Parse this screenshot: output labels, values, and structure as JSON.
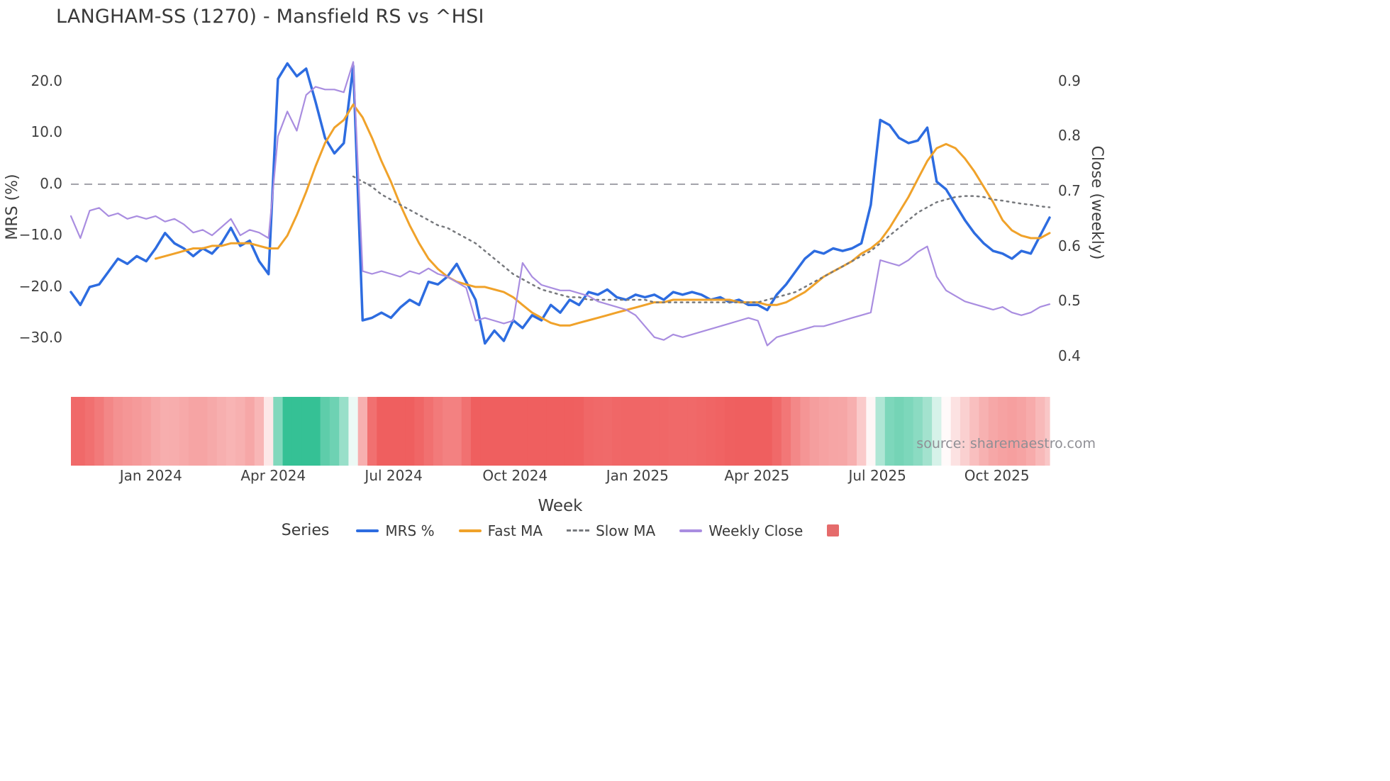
{
  "title": "LANGHAM-SS (1270) - Mansfield RS vs ^HSI",
  "source": "source: sharemaestro.com",
  "axes": {
    "left_label": "MRS (%)",
    "right_label": "Close (weekly)",
    "x_label": "Week",
    "left_ticks": [
      {
        "label": "20.0",
        "v": 20
      },
      {
        "label": "10.0",
        "v": 10
      },
      {
        "label": "0.0",
        "v": 0
      },
      {
        "label": "−10.0",
        "v": -10
      },
      {
        "label": "−20.0",
        "v": -20
      },
      {
        "label": "−30.0",
        "v": -30
      }
    ],
    "right_ticks": [
      {
        "label": "0.9",
        "v": 0.9
      },
      {
        "label": "0.8",
        "v": 0.8
      },
      {
        "label": "0.7",
        "v": 0.7
      },
      {
        "label": "0.6",
        "v": 0.6
      },
      {
        "label": "0.5",
        "v": 0.5
      },
      {
        "label": "0.4",
        "v": 0.4
      }
    ],
    "x_ticks": [
      {
        "label": "Jan 2024",
        "i": 8.5
      },
      {
        "label": "Apr 2024",
        "i": 21.5
      },
      {
        "label": "Jul 2024",
        "i": 34.3
      },
      {
        "label": "Oct 2024",
        "i": 47.2
      },
      {
        "label": "Jan 2025",
        "i": 60.2
      },
      {
        "label": "Apr 2025",
        "i": 72.9
      },
      {
        "label": "Jul 2025",
        "i": 85.7
      },
      {
        "label": "Oct 2025",
        "i": 98.4
      }
    ]
  },
  "legend": {
    "title": "Series",
    "entries": [
      {
        "label": "MRS %",
        "swatch": "line",
        "color": "#2d6ce0"
      },
      {
        "label": "Fast MA",
        "swatch": "line",
        "color": "#f0a22a"
      },
      {
        "label": "Slow MA",
        "swatch": "dashed-line",
        "color": "#77797d"
      },
      {
        "label": "Weekly Close",
        "swatch": "line",
        "color": "#a98de0"
      },
      {
        "label": "",
        "swatch": "square",
        "color": "#e56b6b"
      }
    ]
  },
  "chart_data": {
    "type": "line",
    "x_unit": "weekly, Nov 2023 - Nov 2025",
    "left_range": [
      -34.5,
      25.5
    ],
    "right_range": [
      0.391,
      0.951
    ],
    "zero_line": 0,
    "heatmap": {
      "derived_from": "MRS %",
      "positive_color_rgb": [
        26,
        184,
        134
      ],
      "negative_color_rgb": [
        237,
        73,
        73
      ]
    },
    "series": [
      {
        "name": "MRS %",
        "axis": "left",
        "color": "#2d6ce0",
        "style": "solid",
        "width": 3.5,
        "values": [
          -21,
          -23.5,
          -20,
          -19.5,
          -17,
          -14.5,
          -15.5,
          -14,
          -15,
          -12.5,
          -9.5,
          -11.5,
          -12.5,
          -14,
          -12.5,
          -13.5,
          -11.5,
          -8.5,
          -12,
          -11,
          -15,
          -17.5,
          20.5,
          23.5,
          21,
          22.5,
          16,
          9,
          6,
          8,
          23,
          -26.5,
          -26,
          -25,
          -26,
          -24,
          -22.5,
          -23.5,
          -19,
          -19.5,
          -18,
          -15.5,
          -19,
          -22.5,
          -31,
          -28.5,
          -30.5,
          -26.5,
          -28,
          -25.5,
          -26.5,
          -23.5,
          -25,
          -22.5,
          -23.5,
          -21,
          -21.5,
          -20.5,
          -22,
          -22.5,
          -21.5,
          -22,
          -21.5,
          -22.5,
          -21,
          -21.5,
          -21,
          -21.5,
          -22.5,
          -22,
          -23,
          -22.5,
          -23.5,
          -23.5,
          -24.5,
          -21.5,
          -19.5,
          -17,
          -14.5,
          -13,
          -13.5,
          -12.5,
          -13,
          -12.5,
          -11.5,
          -4,
          12.5,
          11.5,
          9,
          8,
          8.5,
          11,
          0.5,
          -1,
          -4,
          -7,
          -9.5,
          -11.5,
          -13,
          -13.5,
          -14.5,
          -13,
          -13.5,
          -10,
          -6.5
        ]
      },
      {
        "name": "Fast MA",
        "axis": "left",
        "color": "#f0a22a",
        "style": "solid",
        "width": 3,
        "values": [
          null,
          null,
          null,
          null,
          null,
          null,
          null,
          null,
          null,
          -14.5,
          -14,
          -13.5,
          -13,
          -12.5,
          -12.5,
          -12,
          -12,
          -11.5,
          -11.5,
          -11.5,
          -12,
          -12.5,
          -12.5,
          -10,
          -6,
          -1.5,
          3.5,
          8,
          11,
          12.5,
          15.5,
          13,
          9,
          4.5,
          0.5,
          -4,
          -8,
          -11.5,
          -14.5,
          -16.5,
          -18,
          -19,
          -19.5,
          -20,
          -20,
          -20.5,
          -21,
          -22,
          -23.5,
          -25,
          -26,
          -27,
          -27.5,
          -27.5,
          -27,
          -26.5,
          -26,
          -25.5,
          -25,
          -24.5,
          -24,
          -23.5,
          -23,
          -23,
          -22.5,
          -22.5,
          -22.5,
          -22.5,
          -22.5,
          -22.5,
          -22.5,
          -23,
          -23,
          -23,
          -23.5,
          -23.5,
          -23,
          -22,
          -21,
          -19.5,
          -18,
          -17,
          -16,
          -15,
          -13.5,
          -12.5,
          -11,
          -8.5,
          -5.5,
          -2.5,
          1,
          4.5,
          7,
          7.8,
          7,
          5,
          2.5,
          -0.5,
          -3.5,
          -7,
          -9,
          -10,
          -10.5,
          -10.5,
          -9.5
        ]
      },
      {
        "name": "Slow MA",
        "axis": "left",
        "color": "#77797d",
        "style": "dotted",
        "width": 2.5,
        "values": [
          null,
          null,
          null,
          null,
          null,
          null,
          null,
          null,
          null,
          null,
          null,
          null,
          null,
          null,
          null,
          null,
          null,
          null,
          null,
          null,
          null,
          null,
          null,
          null,
          null,
          null,
          null,
          null,
          null,
          null,
          1.5,
          0.5,
          -0.5,
          -2,
          -3,
          -4,
          -5,
          -6,
          -7,
          -8,
          -8.5,
          -9.5,
          -10.5,
          -11.5,
          -13,
          -14.5,
          -16,
          -17.5,
          -18.5,
          -19.5,
          -20.5,
          -21,
          -21.5,
          -22,
          -22,
          -22.5,
          -22.5,
          -22.5,
          -22.5,
          -22.5,
          -22.5,
          -22.5,
          -23,
          -23,
          -23,
          -23,
          -23,
          -23,
          -23,
          -23,
          -23,
          -23,
          -23,
          -23,
          -22.5,
          -22,
          -21.5,
          -21,
          -20,
          -19,
          -18,
          -17,
          -16,
          -15,
          -14,
          -13,
          -11.5,
          -10,
          -8.5,
          -7,
          -5.5,
          -4.5,
          -3.5,
          -3,
          -2.5,
          -2.3,
          -2.3,
          -2.5,
          -3,
          -3.2,
          -3.5,
          -3.8,
          -4,
          -4.3,
          -4.5
        ]
      },
      {
        "name": "Weekly Close",
        "axis": "right",
        "color": "#a98de0",
        "style": "solid",
        "width": 2.2,
        "values": [
          0.655,
          0.615,
          0.665,
          0.67,
          0.655,
          0.66,
          0.65,
          0.655,
          0.65,
          0.655,
          0.645,
          0.65,
          0.64,
          0.625,
          0.63,
          0.62,
          0.635,
          0.65,
          0.62,
          0.63,
          0.625,
          0.615,
          0.8,
          0.845,
          0.81,
          0.875,
          0.89,
          0.885,
          0.885,
          0.88,
          0.935,
          0.555,
          0.55,
          0.555,
          0.55,
          0.545,
          0.555,
          0.55,
          0.56,
          0.55,
          0.545,
          0.535,
          0.525,
          0.465,
          0.47,
          0.465,
          0.46,
          0.465,
          0.57,
          0.545,
          0.53,
          0.525,
          0.52,
          0.52,
          0.515,
          0.51,
          0.5,
          0.495,
          0.49,
          0.485,
          0.475,
          0.455,
          0.435,
          0.43,
          0.44,
          0.435,
          0.44,
          0.445,
          0.45,
          0.455,
          0.46,
          0.465,
          0.47,
          0.465,
          0.42,
          0.435,
          0.44,
          0.445,
          0.45,
          0.455,
          0.455,
          0.46,
          0.465,
          0.47,
          0.475,
          0.48,
          0.575,
          0.57,
          0.565,
          0.575,
          0.59,
          0.6,
          0.545,
          0.52,
          0.51,
          0.5,
          0.495,
          0.49,
          0.485,
          0.49,
          0.48,
          0.475,
          0.48,
          0.49,
          0.495
        ]
      }
    ]
  }
}
